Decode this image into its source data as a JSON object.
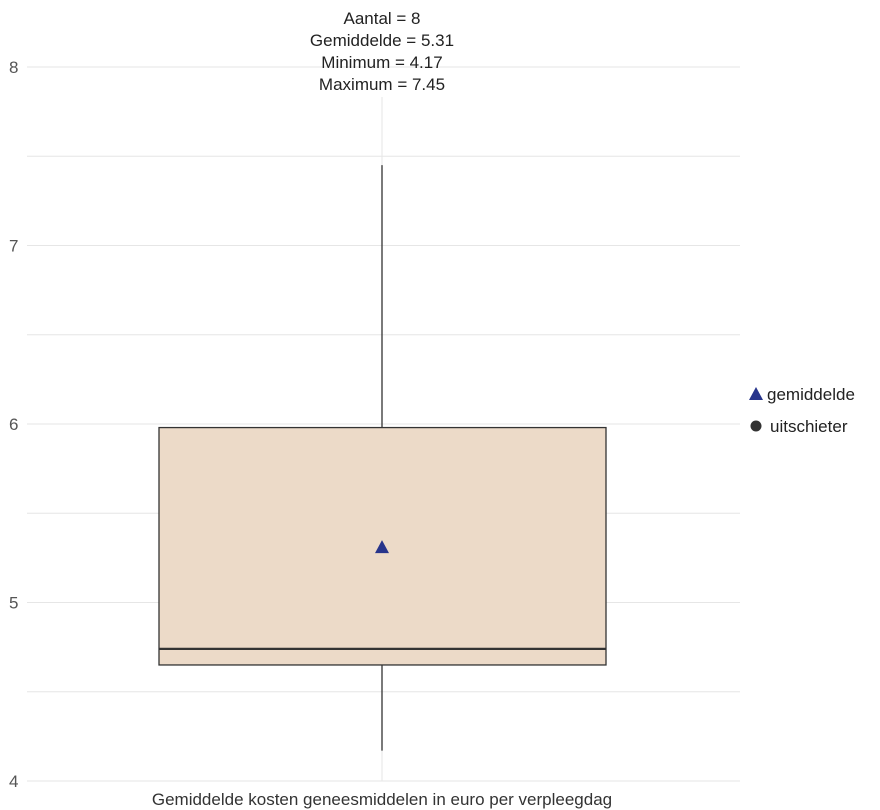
{
  "chart_data": {
    "type": "box",
    "xlabel": "Gemiddelde kosten geneesmiddelen in euro per verpleegdag",
    "ylabel": "",
    "ylim": [
      4,
      8
    ],
    "yticks": [
      4,
      5,
      6,
      7,
      8
    ],
    "grid": true,
    "stats_text": [
      "Aantal = 8",
      "Gemiddelde = 5.31",
      "Minimum = 4.17",
      "Maximum = 7.45"
    ],
    "box": {
      "n": 8,
      "min": 4.17,
      "q1": 4.65,
      "median": 4.74,
      "q3": 5.98,
      "max": 7.45,
      "mean": 5.31,
      "outliers": []
    },
    "legend": {
      "position": "right",
      "items": [
        {
          "label": "gemiddelde",
          "symbol": "triangle",
          "color": "#27348b"
        },
        {
          "label": "uitschieter",
          "symbol": "circle",
          "color": "#333333"
        }
      ]
    },
    "colors": {
      "box_fill": "#ecdac8",
      "box_stroke": "#333333",
      "median": "#333333",
      "whisker": "#333333",
      "mean_marker": "#27348b",
      "grid": "#e6e6e6"
    }
  }
}
